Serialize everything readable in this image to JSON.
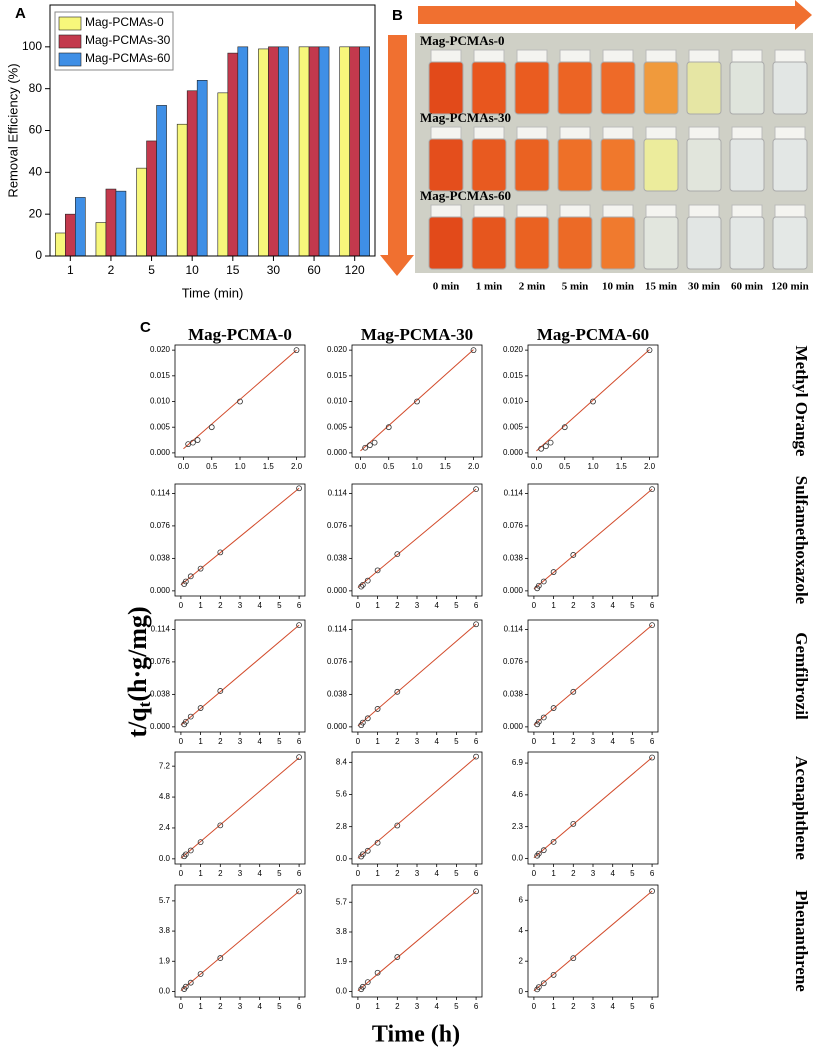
{
  "panel_labels": {
    "a": "A",
    "b": "B",
    "c": "C"
  },
  "photo": {
    "rows": [
      "Mag-PCMAs-0",
      "Mag-PCMAs-30",
      "Mag-PCMAs-60"
    ],
    "times": [
      "0 min",
      "1 min",
      "2 min",
      "5 min",
      "10 min",
      "15 min",
      "30 min",
      "60 min",
      "120 min"
    ]
  },
  "panel_c": {
    "columns": [
      "Mag-PCMA-0",
      "Mag-PCMA-30",
      "Mag-PCMA-60"
    ],
    "rows": [
      "Methyl Orange",
      "Sulfamethoxazole",
      "Gemfibrozil",
      "Acenaphthene",
      "Phenanthrene"
    ],
    "y_label": [
      "t/q",
      "t",
      "(h·g/mg)"
    ],
    "x_label": "Time (h)"
  },
  "chart_data": [
    {
      "type": "bar",
      "x_label": "Time (min)",
      "y_label": "Removal Efficiency (%)",
      "categories": [
        "1",
        "2",
        "5",
        "10",
        "15",
        "30",
        "60",
        "120"
      ],
      "series": [
        {
          "name": "Mag-PCMAs-0",
          "color": "#f7f77b",
          "values": [
            11,
            16,
            42,
            63,
            78,
            99,
            100,
            100
          ]
        },
        {
          "name": "Mag-PCMAs-30",
          "color": "#c3394d",
          "values": [
            20,
            32,
            55,
            79,
            97,
            100,
            100,
            100
          ]
        },
        {
          "name": "Mag-PCMAs-60",
          "color": "#3f8fe6",
          "values": [
            28,
            31,
            72,
            84,
            100,
            100,
            100,
            100
          ]
        }
      ],
      "ylim": [
        0,
        120
      ],
      "yticks": [
        0,
        20,
        40,
        60,
        80,
        100
      ],
      "legend": "upper-left"
    },
    {
      "type": "scatter",
      "x": [
        0.083,
        0.167,
        0.25,
        0.5,
        1,
        2
      ],
      "values": [
        0.0017,
        0.002,
        0.0025,
        0.005,
        0.01,
        0.02
      ],
      "fit_x": [
        0,
        2
      ],
      "fit_values": [
        0.0008,
        0.02
      ],
      "xlim": [
        -0.15,
        2.15
      ],
      "ylim": [
        -0.0008,
        0.021
      ],
      "xticks": [
        {
          "value": 0,
          "label": "0.0"
        },
        {
          "value": 0.5,
          "label": "0.5"
        },
        {
          "value": 1,
          "label": "1.0"
        },
        {
          "value": 1.5,
          "label": "1.5"
        },
        {
          "value": 2,
          "label": "2.0"
        }
      ],
      "yticks": [
        {
          "value": 0,
          "label": "0.000"
        },
        {
          "value": 0.005,
          "label": "0.005"
        },
        {
          "value": 0.01,
          "label": "0.010"
        },
        {
          "value": 0.015,
          "label": "0.015"
        },
        {
          "value": 0.02,
          "label": "0.020"
        }
      ]
    },
    {
      "type": "scatter",
      "x": [
        0.083,
        0.167,
        0.25,
        0.5,
        1,
        2
      ],
      "values": [
        0.001,
        0.0015,
        0.002,
        0.005,
        0.01,
        0.02
      ],
      "fit_x": [
        0,
        2
      ],
      "fit_values": [
        0.0004,
        0.0201
      ],
      "xlim": [
        -0.15,
        2.15
      ],
      "ylim": [
        -0.0008,
        0.021
      ],
      "xticks": [
        {
          "value": 0,
          "label": "0.0"
        },
        {
          "value": 0.5,
          "label": "0.5"
        },
        {
          "value": 1,
          "label": "1.0"
        },
        {
          "value": 1.5,
          "label": "1.5"
        },
        {
          "value": 2,
          "label": "2.0"
        }
      ],
      "yticks": [
        {
          "value": 0,
          "label": "0.000"
        },
        {
          "value": 0.005,
          "label": "0.005"
        },
        {
          "value": 0.01,
          "label": "0.010"
        },
        {
          "value": 0.015,
          "label": "0.015"
        },
        {
          "value": 0.02,
          "label": "0.020"
        }
      ]
    },
    {
      "type": "scatter",
      "x": [
        0.083,
        0.167,
        0.25,
        0.5,
        1,
        2
      ],
      "values": [
        0.0008,
        0.0013,
        0.002,
        0.005,
        0.01,
        0.02
      ],
      "fit_x": [
        0,
        2
      ],
      "fit_values": [
        0.0004,
        0.0201
      ],
      "xlim": [
        -0.15,
        2.15
      ],
      "ylim": [
        -0.0008,
        0.021
      ],
      "xticks": [
        {
          "value": 0,
          "label": "0.0"
        },
        {
          "value": 0.5,
          "label": "0.5"
        },
        {
          "value": 1,
          "label": "1.0"
        },
        {
          "value": 1.5,
          "label": "1.5"
        },
        {
          "value": 2,
          "label": "2.0"
        }
      ],
      "yticks": [
        {
          "value": 0,
          "label": "0.000"
        },
        {
          "value": 0.005,
          "label": "0.005"
        },
        {
          "value": 0.01,
          "label": "0.010"
        },
        {
          "value": 0.015,
          "label": "0.015"
        },
        {
          "value": 0.02,
          "label": "0.020"
        }
      ]
    },
    {
      "type": "scatter",
      "x": [
        0.167,
        0.25,
        0.5,
        1,
        2,
        6
      ],
      "values": [
        0.008,
        0.011,
        0.017,
        0.026,
        0.045,
        0.12
      ],
      "fit_x": [
        0,
        6
      ],
      "fit_values": [
        0.007,
        0.12
      ],
      "xlim": [
        -0.3,
        6.3
      ],
      "ylim": [
        -0.006,
        0.125
      ],
      "xticks": [
        0,
        1,
        2,
        3,
        4,
        5,
        6
      ],
      "yticks": [
        {
          "value": 0,
          "label": "0.000"
        },
        {
          "value": 0.038,
          "label": "0.038"
        },
        {
          "value": 0.076,
          "label": "0.076"
        },
        {
          "value": 0.114,
          "label": "0.114"
        }
      ]
    },
    {
      "type": "scatter",
      "x": [
        0.167,
        0.25,
        0.5,
        1,
        2,
        6
      ],
      "values": [
        0.005,
        0.007,
        0.012,
        0.024,
        0.043,
        0.119
      ],
      "fit_x": [
        0,
        6
      ],
      "fit_values": [
        0.004,
        0.119
      ],
      "xlim": [
        -0.3,
        6.3
      ],
      "ylim": [
        -0.006,
        0.125
      ],
      "xticks": [
        0,
        1,
        2,
        3,
        4,
        5,
        6
      ],
      "yticks": [
        {
          "value": 0,
          "label": "0.000"
        },
        {
          "value": 0.038,
          "label": "0.038"
        },
        {
          "value": 0.076,
          "label": "0.076"
        },
        {
          "value": 0.114,
          "label": "0.114"
        }
      ]
    },
    {
      "type": "scatter",
      "x": [
        0.167,
        0.25,
        0.5,
        1,
        2,
        6
      ],
      "values": [
        0.003,
        0.006,
        0.011,
        0.022,
        0.042,
        0.119
      ],
      "fit_x": [
        0,
        6
      ],
      "fit_values": [
        0.002,
        0.119
      ],
      "xlim": [
        -0.3,
        6.3
      ],
      "ylim": [
        -0.006,
        0.125
      ],
      "xticks": [
        0,
        1,
        2,
        3,
        4,
        5,
        6
      ],
      "yticks": [
        {
          "value": 0,
          "label": "0.000"
        },
        {
          "value": 0.038,
          "label": "0.038"
        },
        {
          "value": 0.076,
          "label": "0.076"
        },
        {
          "value": 0.114,
          "label": "0.114"
        }
      ]
    },
    {
      "type": "scatter",
      "x": [
        0.167,
        0.25,
        0.5,
        1,
        2,
        6
      ],
      "values": [
        0.003,
        0.006,
        0.012,
        0.022,
        0.042,
        0.119
      ],
      "fit_x": [
        0,
        6
      ],
      "fit_values": [
        0.002,
        0.119
      ],
      "xlim": [
        -0.3,
        6.3
      ],
      "ylim": [
        -0.006,
        0.125
      ],
      "xticks": [
        0,
        1,
        2,
        3,
        4,
        5,
        6
      ],
      "yticks": [
        {
          "value": 0,
          "label": "0.000"
        },
        {
          "value": 0.038,
          "label": "0.038"
        },
        {
          "value": 0.076,
          "label": "0.076"
        },
        {
          "value": 0.114,
          "label": "0.114"
        }
      ]
    },
    {
      "type": "scatter",
      "x": [
        0.167,
        0.25,
        0.5,
        1,
        2,
        6
      ],
      "values": [
        0.002,
        0.005,
        0.01,
        0.021,
        0.041,
        0.12
      ],
      "fit_x": [
        0,
        6
      ],
      "fit_values": [
        0.001,
        0.12
      ],
      "xlim": [
        -0.3,
        6.3
      ],
      "ylim": [
        -0.006,
        0.125
      ],
      "xticks": [
        0,
        1,
        2,
        3,
        4,
        5,
        6
      ],
      "yticks": [
        {
          "value": 0,
          "label": "0.000"
        },
        {
          "value": 0.038,
          "label": "0.038"
        },
        {
          "value": 0.076,
          "label": "0.076"
        },
        {
          "value": 0.114,
          "label": "0.114"
        }
      ]
    },
    {
      "type": "scatter",
      "x": [
        0.167,
        0.25,
        0.5,
        1,
        2,
        6
      ],
      "values": [
        0.003,
        0.006,
        0.011,
        0.022,
        0.041,
        0.119
      ],
      "fit_x": [
        0,
        6
      ],
      "fit_values": [
        0.002,
        0.119
      ],
      "xlim": [
        -0.3,
        6.3
      ],
      "ylim": [
        -0.006,
        0.125
      ],
      "xticks": [
        0,
        1,
        2,
        3,
        4,
        5,
        6
      ],
      "yticks": [
        {
          "value": 0,
          "label": "0.000"
        },
        {
          "value": 0.038,
          "label": "0.038"
        },
        {
          "value": 0.076,
          "label": "0.076"
        },
        {
          "value": 0.114,
          "label": "0.114"
        }
      ]
    },
    {
      "type": "scatter",
      "x": [
        0.167,
        0.25,
        0.5,
        1,
        2,
        6
      ],
      "values": [
        0.2,
        0.35,
        0.65,
        1.3,
        2.6,
        7.9
      ],
      "fit_x": [
        0,
        6
      ],
      "fit_values": [
        0.05,
        7.85
      ],
      "xlim": [
        -0.3,
        6.3
      ],
      "ylim": [
        -0.4,
        8.3
      ],
      "xticks": [
        0,
        1,
        2,
        3,
        4,
        5,
        6
      ],
      "yticks": [
        {
          "value": 0,
          "label": "0.0"
        },
        2.4,
        4.8,
        7.2
      ]
    },
    {
      "type": "scatter",
      "x": [
        0.167,
        0.25,
        0.5,
        1,
        2,
        6
      ],
      "values": [
        0.2,
        0.4,
        0.7,
        1.4,
        2.9,
        8.9
      ],
      "fit_x": [
        0,
        6
      ],
      "fit_values": [
        0.05,
        8.85
      ],
      "xlim": [
        -0.3,
        6.3
      ],
      "ylim": [
        -0.45,
        9.3
      ],
      "xticks": [
        0,
        1,
        2,
        3,
        4,
        5,
        6
      ],
      "yticks": [
        {
          "value": 0,
          "label": "0.0"
        },
        2.8,
        5.6,
        8.4
      ]
    },
    {
      "type": "scatter",
      "x": [
        0.167,
        0.25,
        0.5,
        1,
        2,
        6
      ],
      "values": [
        0.2,
        0.35,
        0.6,
        1.2,
        2.5,
        7.3
      ],
      "fit_x": [
        0,
        6
      ],
      "fit_values": [
        0.05,
        7.3
      ],
      "xlim": [
        -0.3,
        6.3
      ],
      "ylim": [
        -0.4,
        7.7
      ],
      "xticks": [
        0,
        1,
        2,
        3,
        4,
        5,
        6
      ],
      "yticks": [
        {
          "value": 0,
          "label": "0.0"
        },
        2.3,
        4.6,
        6.9
      ]
    },
    {
      "type": "scatter",
      "x": [
        0.167,
        0.25,
        0.5,
        1,
        2,
        6
      ],
      "values": [
        0.15,
        0.3,
        0.55,
        1.1,
        2.1,
        6.3
      ],
      "fit_x": [
        0,
        6
      ],
      "fit_values": [
        0.05,
        6.3
      ],
      "xlim": [
        -0.3,
        6.3
      ],
      "ylim": [
        -0.35,
        6.7
      ],
      "xticks": [
        0,
        1,
        2,
        3,
        4,
        5,
        6
      ],
      "yticks": [
        {
          "value": 0,
          "label": "0.0"
        },
        1.9,
        3.8,
        5.7
      ]
    },
    {
      "type": "scatter",
      "x": [
        0.167,
        0.25,
        0.5,
        1,
        2,
        6
      ],
      "values": [
        0.15,
        0.3,
        0.6,
        1.2,
        2.2,
        6.4
      ],
      "fit_x": [
        0,
        6
      ],
      "fit_values": [
        0.05,
        6.4
      ],
      "xlim": [
        -0.3,
        6.3
      ],
      "ylim": [
        -0.35,
        6.8
      ],
      "xticks": [
        0,
        1,
        2,
        3,
        4,
        5,
        6
      ],
      "yticks": [
        {
          "value": 0,
          "label": "0.0"
        },
        1.9,
        3.8,
        5.7
      ]
    },
    {
      "type": "scatter",
      "x": [
        0.167,
        0.25,
        0.5,
        1,
        2,
        6
      ],
      "values": [
        0.15,
        0.3,
        0.55,
        1.1,
        2.2,
        6.6
      ],
      "fit_x": [
        0,
        6
      ],
      "fit_values": [
        0.05,
        6.6
      ],
      "xlim": [
        -0.3,
        6.3
      ],
      "ylim": [
        -0.35,
        7.0
      ],
      "xticks": [
        0,
        1,
        2,
        3,
        4,
        5,
        6
      ],
      "yticks": [
        0,
        2,
        4,
        6
      ]
    }
  ]
}
